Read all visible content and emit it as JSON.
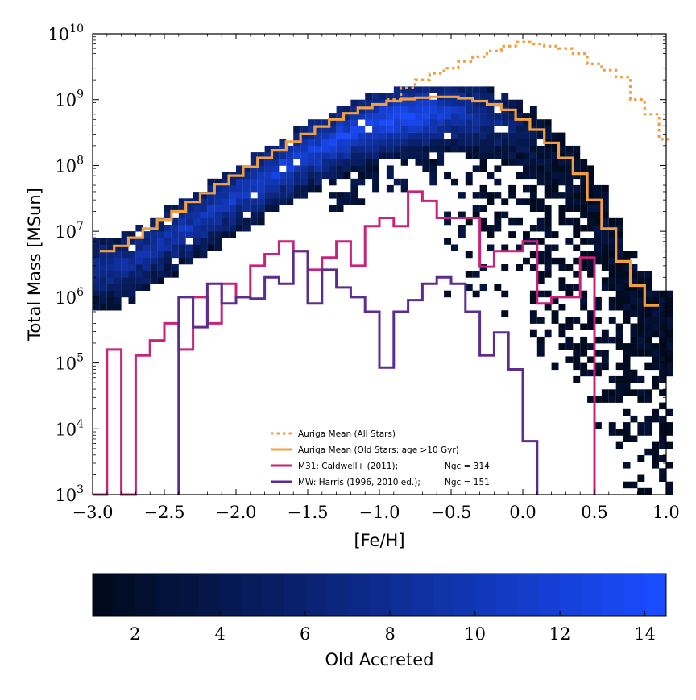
{
  "chart_data": {
    "type": "heatmap",
    "title": "",
    "xlabel": "[Fe/H]",
    "ylabel": "Total Mass [MSun]",
    "xlim": [
      -3.0,
      1.0
    ],
    "ylim": [
      1000,
      10000000000
    ],
    "yscale": "log",
    "x_ticks": [
      "−3.0",
      "−2.5",
      "−2.0",
      "−1.5",
      "−1.0",
      "−0.5",
      "0.0",
      "0.5",
      "1.0"
    ],
    "y_ticks": [
      {
        "base": "10",
        "exp": "3"
      },
      {
        "base": "10",
        "exp": "4"
      },
      {
        "base": "10",
        "exp": "5"
      },
      {
        "base": "10",
        "exp": "6"
      },
      {
        "base": "10",
        "exp": "7"
      },
      {
        "base": "10",
        "exp": "8"
      },
      {
        "base": "10",
        "exp": "9"
      },
      {
        "base": "10",
        "exp": "10"
      }
    ],
    "legend_position": "lower-center",
    "colors": {
      "auriga_all": "#f0a040",
      "auriga_old": "#f0a040",
      "m31": "#c8237a",
      "mw": "#5b2d8e",
      "cmap_low": "#000a1e",
      "cmap_high": "#1a4cff"
    },
    "series": [
      {
        "name": "Auriga Mean (All Stars)",
        "style": "dotted",
        "x": [
          -0.9,
          -0.8,
          -0.7,
          -0.6,
          -0.5,
          -0.4,
          -0.3,
          -0.2,
          -0.1,
          0.0,
          0.1,
          0.2,
          0.3,
          0.4,
          0.5,
          0.6,
          0.7,
          0.8,
          0.9,
          1.0
        ],
        "y": [
          1000000000.0,
          1500000000.0,
          2000000000.0,
          2500000000.0,
          3000000000.0,
          3800000000.0,
          4500000000.0,
          5500000000.0,
          6500000000.0,
          7500000000.0,
          7000000000.0,
          6500000000.0,
          6000000000.0,
          5000000000.0,
          3500000000.0,
          2800000000.0,
          2200000000.0,
          1000000000.0,
          600000000.0,
          250000000.0
        ]
      },
      {
        "name": "Auriga Mean (Old Stars: age >10 Gyr)",
        "style": "step",
        "x": [
          -2.9,
          -2.8,
          -2.7,
          -2.6,
          -2.5,
          -2.4,
          -2.3,
          -2.2,
          -2.1,
          -2.0,
          -1.9,
          -1.8,
          -1.7,
          -1.6,
          -1.5,
          -1.4,
          -1.3,
          -1.2,
          -1.1,
          -1.0,
          -0.9,
          -0.8,
          -0.7,
          -0.6,
          -0.5,
          -0.4,
          -0.3,
          -0.2,
          -0.1,
          0.0,
          0.1,
          0.2,
          0.3,
          0.4,
          0.5,
          0.6,
          0.7,
          0.8,
          0.9
        ],
        "y": [
          5000000.0,
          6000000.0,
          8000000.0,
          11000000.0,
          15000000.0,
          20000000.0,
          28000000.0,
          38000000.0,
          52000000.0,
          70000000.0,
          95000000.0,
          130000000.0,
          170000000.0,
          230000000.0,
          300000000.0,
          390000000.0,
          500000000.0,
          620000000.0,
          750000000.0,
          850000000.0,
          950000000.0,
          1020000000.0,
          1070000000.0,
          1100000000.0,
          1100000000.0,
          1050000000.0,
          950000000.0,
          850000000.0,
          700000000.0,
          500000000.0,
          350000000.0,
          220000000.0,
          130000000.0,
          75000000.0,
          30000000.0,
          11000000.0,
          3500000.0,
          1500000.0,
          750000.0
        ]
      },
      {
        "name": "M31: Caldwell+ (2011);",
        "annotation": "Ngc = 314",
        "style": "step",
        "x": [
          -2.95,
          -2.85,
          -2.75,
          -2.65,
          -2.55,
          -2.45,
          -2.35,
          -2.25,
          -2.15,
          -2.05,
          -1.95,
          -1.85,
          -1.75,
          -1.65,
          -1.55,
          -1.45,
          -1.35,
          -1.25,
          -1.15,
          -1.05,
          -0.95,
          -0.85,
          -0.75,
          -0.65,
          -0.55,
          -0.45,
          -0.35,
          -0.25,
          -0.15,
          -0.05,
          0.05,
          0.15,
          0.25,
          0.35,
          0.45
        ],
        "y": [
          1000,
          160000.0,
          1000,
          130000.0,
          220000.0,
          400000.0,
          160000.0,
          1000000.0,
          400000.0,
          1600000.0,
          1000000.0,
          3000000.0,
          4500000.0,
          7000000.0,
          5000000.0,
          2600000.0,
          4000000.0,
          7000000.0,
          3000000.0,
          12000000.0,
          16000000.0,
          12000000.0,
          40000000.0,
          29000000.0,
          16000000.0,
          16000000.0,
          16000000.0,
          2900000.0,
          5000000.0,
          5000000.0,
          7000000.0,
          800000.0,
          1000000.0,
          1000000.0,
          4000000.0
        ]
      },
      {
        "name": "MW: Harris (1996, 2010 ed.);",
        "annotation": "Ngc = 151",
        "style": "step",
        "x": [
          -2.35,
          -2.25,
          -2.15,
          -2.05,
          -1.95,
          -1.85,
          -1.75,
          -1.65,
          -1.55,
          -1.45,
          -1.35,
          -1.25,
          -1.15,
          -1.05,
          -0.95,
          -0.85,
          -0.75,
          -0.65,
          -0.55,
          -0.45,
          -0.35,
          -0.25,
          -0.15,
          -0.05,
          0.05
        ],
        "y": [
          1000000.0,
          350000.0,
          1600000.0,
          800000.0,
          1000000.0,
          950000.0,
          2000000.0,
          1600000.0,
          5000000.0,
          800000.0,
          2600000.0,
          1400000.0,
          1000000.0,
          600000.0,
          85000.0,
          600000.0,
          900000.0,
          1600000.0,
          2000000.0,
          1600000.0,
          600000.0,
          130000.0,
          290000.0,
          80000.0,
          6500.0
        ]
      }
    ],
    "colorbar": {
      "label": "Old Accreted",
      "range": [
        1,
        14.5
      ],
      "ticks": [
        "2",
        "4",
        "6",
        "8",
        "10",
        "12",
        "14"
      ]
    }
  }
}
